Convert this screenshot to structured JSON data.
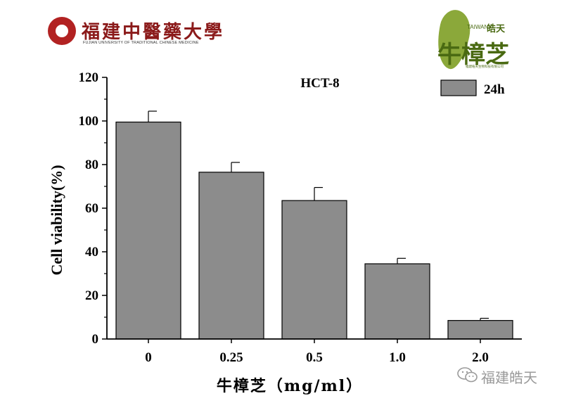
{
  "logos": {
    "university_name": "福建中醫藥大學",
    "university_subtitle": "FUJIAN UNIVERSITY OF TRADITIONAL CHINESE MEDICINE",
    "brand_name": "牛樟芝",
    "brand_hao": "皓天",
    "brand_region": "TAIWAN",
    "brand_company": "福建皓天生物科技有限公司"
  },
  "watermark": {
    "text": "福建皓天"
  },
  "colors": {
    "bar_fill": "#8c8c8c",
    "bar_stroke": "#000000",
    "axis": "#000000",
    "university_red": "#8b1a1a",
    "brand_green": "#4a6a12"
  },
  "chart_data": {
    "type": "bar",
    "title": "HCT-8",
    "xlabel": "牛樟芝（mg/ml）",
    "ylabel": "Cell viability(%)",
    "categories": [
      "0",
      "0.25",
      "0.5",
      "1.0",
      "2.0"
    ],
    "series": [
      {
        "name": "24h",
        "values": [
          99.5,
          76.5,
          63.5,
          34.5,
          8.5
        ],
        "error": [
          5,
          4.5,
          6,
          2.5,
          1
        ]
      }
    ],
    "ylim": [
      0,
      120
    ],
    "yticks": [
      "0",
      "20",
      "40",
      "60",
      "80",
      "100",
      "120"
    ],
    "grid": false,
    "legend_position": "top-right"
  }
}
